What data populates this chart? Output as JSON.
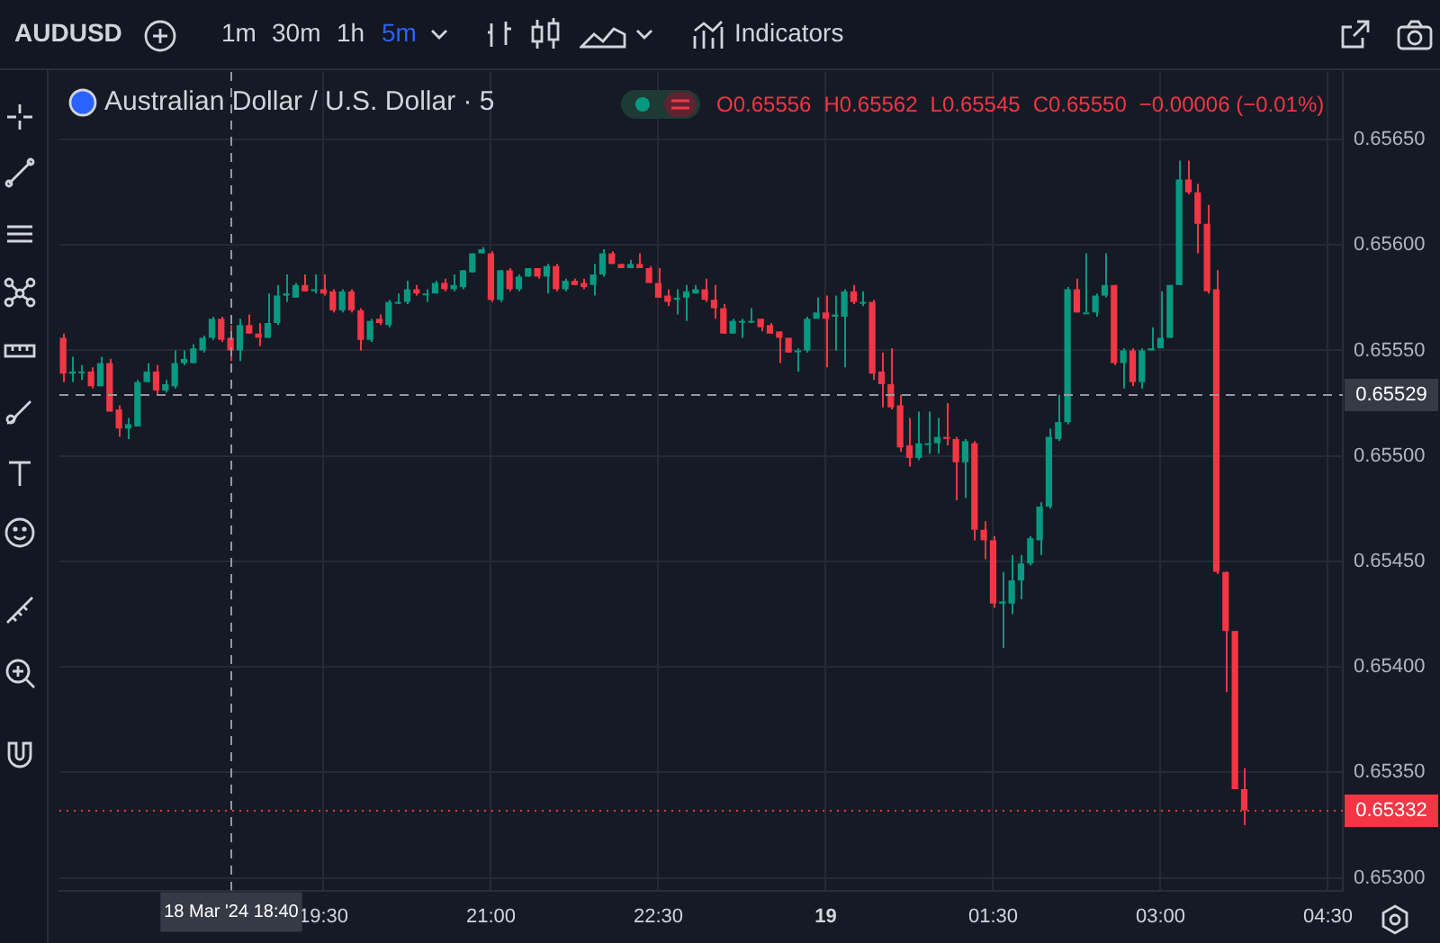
{
  "chart_data": {
    "type": "candlestick",
    "title": "Australian Dollar / U.S. Dollar · 5",
    "annotations": [
      "AUDUSD",
      "1m",
      "30m",
      "1h",
      "5m",
      "Indicators",
      "O0.65556",
      "H0.65562",
      "L0.65545",
      "C0.65550",
      "−0.00006 (−0.01%)"
    ],
    "x": [
      "2024-03-18T17:10",
      "2024-03-18T17:15",
      "2024-03-18T17:20",
      "2024-03-18T17:25",
      "2024-03-18T17:30",
      "2024-03-18T17:35",
      "2024-03-18T17:40",
      "2024-03-18T17:45",
      "2024-03-18T17:50",
      "2024-03-18T17:55",
      "2024-03-18T18:00",
      "2024-03-18T18:05",
      "2024-03-18T18:10",
      "2024-03-18T18:15",
      "2024-03-18T18:20",
      "2024-03-18T18:25",
      "2024-03-18T18:30",
      "2024-03-18T18:35",
      "2024-03-18T18:40",
      "2024-03-18T18:45",
      "2024-03-18T18:50",
      "2024-03-18T18:55",
      "2024-03-18T19:00",
      "2024-03-18T19:05",
      "2024-03-18T19:10",
      "2024-03-18T19:15",
      "2024-03-18T19:20",
      "2024-03-18T19:25",
      "2024-03-18T19:30",
      "2024-03-18T19:35",
      "2024-03-18T19:40",
      "2024-03-18T19:45",
      "2024-03-18T19:50",
      "2024-03-18T19:55",
      "2024-03-18T20:00",
      "2024-03-18T20:05",
      "2024-03-18T20:10",
      "2024-03-18T20:15",
      "2024-03-18T20:20",
      "2024-03-18T20:25",
      "2024-03-18T20:30",
      "2024-03-18T20:35",
      "2024-03-18T20:40",
      "2024-03-18T20:45",
      "2024-03-18T20:50",
      "2024-03-18T20:55",
      "2024-03-18T21:00",
      "2024-03-18T21:05",
      "2024-03-18T21:10",
      "2024-03-18T21:15",
      "2024-03-18T21:20",
      "2024-03-18T21:25",
      "2024-03-18T21:30",
      "2024-03-18T21:35",
      "2024-03-18T21:40",
      "2024-03-18T21:45",
      "2024-03-18T21:50",
      "2024-03-18T21:55",
      "2024-03-18T22:00",
      "2024-03-18T22:05",
      "2024-03-18T22:10",
      "2024-03-18T22:15",
      "2024-03-18T22:20",
      "2024-03-18T22:25",
      "2024-03-18T22:30",
      "2024-03-18T22:35",
      "2024-03-18T22:40",
      "2024-03-18T22:45",
      "2024-03-18T22:50",
      "2024-03-18T22:55",
      "2024-03-18T23:00",
      "2024-03-18T23:05",
      "2024-03-18T23:10",
      "2024-03-18T23:15",
      "2024-03-18T23:20",
      "2024-03-18T23:25",
      "2024-03-18T23:30",
      "2024-03-18T23:35",
      "2024-03-18T23:40",
      "2024-03-18T23:45",
      "2024-03-18T23:50",
      "2024-03-18T23:55",
      "2024-03-19T00:00",
      "2024-03-19T00:05",
      "2024-03-19T00:10",
      "2024-03-19T00:15",
      "2024-03-19T00:20",
      "2024-03-19T00:25",
      "2024-03-19T00:30",
      "2024-03-19T00:35",
      "2024-03-19T00:40",
      "2024-03-19T00:45",
      "2024-03-19T00:50",
      "2024-03-19T00:55",
      "2024-03-19T01:00",
      "2024-03-19T01:05",
      "2024-03-19T01:10",
      "2024-03-19T01:15",
      "2024-03-19T01:20",
      "2024-03-19T01:25",
      "2024-03-19T01:30",
      "2024-03-19T01:35",
      "2024-03-19T01:40",
      "2024-03-19T01:45",
      "2024-03-19T01:50",
      "2024-03-19T01:55",
      "2024-03-19T02:00",
      "2024-03-19T02:05",
      "2024-03-19T02:10",
      "2024-03-19T02:15",
      "2024-03-19T02:20",
      "2024-03-19T02:25",
      "2024-03-19T02:30",
      "2024-03-19T02:35",
      "2024-03-19T02:40",
      "2024-03-19T02:45",
      "2024-03-19T02:50",
      "2024-03-19T02:55",
      "2024-03-19T03:00",
      "2024-03-19T03:05",
      "2024-03-19T03:10",
      "2024-03-19T03:15",
      "2024-03-19T03:20",
      "2024-03-19T03:25",
      "2024-03-19T03:30",
      "2024-03-19T03:35",
      "2024-03-19T03:40",
      "2024-03-19T03:45"
    ],
    "ohlc": [
      [
        0.65556,
        0.65558,
        0.65535,
        0.65539
      ],
      [
        0.65539,
        0.65547,
        0.65535,
        0.6554
      ],
      [
        0.6554,
        0.65543,
        0.65536,
        0.6554
      ],
      [
        0.6554,
        0.65542,
        0.65532,
        0.65533
      ],
      [
        0.65533,
        0.65547,
        0.65533,
        0.65544
      ],
      [
        0.65544,
        0.65546,
        0.65521,
        0.65521
      ],
      [
        0.65522,
        0.65524,
        0.65509,
        0.65513
      ],
      [
        0.65513,
        0.65518,
        0.65508,
        0.65515
      ],
      [
        0.65514,
        0.65536,
        0.65514,
        0.65535
      ],
      [
        0.65535,
        0.65544,
        0.65535,
        0.6554
      ],
      [
        0.6554,
        0.65543,
        0.65529,
        0.65531
      ],
      [
        0.65531,
        0.65536,
        0.6553,
        0.65534
      ],
      [
        0.65533,
        0.6555,
        0.65532,
        0.65544
      ],
      [
        0.65544,
        0.6555,
        0.65543,
        0.65546
      ],
      [
        0.65544,
        0.65553,
        0.65544,
        0.65551
      ],
      [
        0.6555,
        0.65557,
        0.65549,
        0.65556
      ],
      [
        0.65556,
        0.65566,
        0.65555,
        0.65565
      ],
      [
        0.65565,
        0.65566,
        0.65554,
        0.65555
      ],
      [
        0.65556,
        0.65562,
        0.65545,
        0.6555
      ],
      [
        0.6555,
        0.65565,
        0.65545,
        0.65562
      ],
      [
        0.65562,
        0.65567,
        0.65558,
        0.65558
      ],
      [
        0.65558,
        0.65563,
        0.65552,
        0.65556
      ],
      [
        0.65556,
        0.65577,
        0.65556,
        0.65563
      ],
      [
        0.65563,
        0.65581,
        0.65562,
        0.65576
      ],
      [
        0.65576,
        0.65586,
        0.65573,
        0.65577
      ],
      [
        0.65575,
        0.65582,
        0.65575,
        0.65581
      ],
      [
        0.65581,
        0.65586,
        0.65578,
        0.65578
      ],
      [
        0.65579,
        0.65586,
        0.65577,
        0.65579
      ],
      [
        0.65579,
        0.65586,
        0.65576,
        0.65577
      ],
      [
        0.65578,
        0.65579,
        0.65568,
        0.65569
      ],
      [
        0.65569,
        0.65579,
        0.65568,
        0.65578
      ],
      [
        0.65578,
        0.65579,
        0.65568,
        0.65569
      ],
      [
        0.65569,
        0.6557,
        0.6555,
        0.65555
      ],
      [
        0.65555,
        0.65565,
        0.65554,
        0.65564
      ],
      [
        0.65565,
        0.65567,
        0.65562,
        0.65563
      ],
      [
        0.65562,
        0.65574,
        0.65561,
        0.65573
      ],
      [
        0.65573,
        0.65577,
        0.65572,
        0.65573
      ],
      [
        0.65573,
        0.65583,
        0.65572,
        0.65579
      ],
      [
        0.65579,
        0.65581,
        0.65576,
        0.65577
      ],
      [
        0.65577,
        0.65579,
        0.65573,
        0.65577
      ],
      [
        0.65577,
        0.65583,
        0.65577,
        0.65582
      ],
      [
        0.65582,
        0.65584,
        0.65578,
        0.65579
      ],
      [
        0.65579,
        0.65586,
        0.65578,
        0.65581
      ],
      [
        0.6558,
        0.65588,
        0.65579,
        0.65588
      ],
      [
        0.65587,
        0.65596,
        0.65587,
        0.65596
      ],
      [
        0.65596,
        0.65599,
        0.65596,
        0.65598
      ],
      [
        0.65596,
        0.65597,
        0.65573,
        0.65574
      ],
      [
        0.65574,
        0.65588,
        0.65573,
        0.65588
      ],
      [
        0.65588,
        0.65589,
        0.65578,
        0.65579
      ],
      [
        0.65579,
        0.65586,
        0.65578,
        0.65585
      ],
      [
        0.65585,
        0.65589,
        0.65585,
        0.65589
      ],
      [
        0.65589,
        0.65589,
        0.65584,
        0.65585
      ],
      [
        0.65585,
        0.65591,
        0.65577,
        0.6559
      ],
      [
        0.6559,
        0.65591,
        0.65578,
        0.65579
      ],
      [
        0.65579,
        0.65584,
        0.65578,
        0.65583
      ],
      [
        0.65583,
        0.65584,
        0.65581,
        0.65581
      ],
      [
        0.65582,
        0.65584,
        0.65579,
        0.6558
      ],
      [
        0.65581,
        0.65591,
        0.65576,
        0.65586
      ],
      [
        0.65586,
        0.65598,
        0.65585,
        0.65596
      ],
      [
        0.65596,
        0.65597,
        0.65591,
        0.65591
      ],
      [
        0.65591,
        0.65591,
        0.65589,
        0.65589
      ],
      [
        0.65589,
        0.65593,
        0.65589,
        0.65591
      ],
      [
        0.65591,
        0.65596,
        0.65589,
        0.65589
      ],
      [
        0.65589,
        0.6559,
        0.65582,
        0.65582
      ],
      [
        0.65582,
        0.65589,
        0.65575,
        0.65575
      ],
      [
        0.65576,
        0.65579,
        0.65571,
        0.65573
      ],
      [
        0.65574,
        0.65579,
        0.65567,
        0.65575
      ],
      [
        0.65575,
        0.65581,
        0.65564,
        0.65578
      ],
      [
        0.65577,
        0.65581,
        0.65577,
        0.65579
      ],
      [
        0.65579,
        0.65584,
        0.65573,
        0.65574
      ],
      [
        0.65574,
        0.65581,
        0.65565,
        0.6557
      ],
      [
        0.6557,
        0.65572,
        0.65558,
        0.65558
      ],
      [
        0.65558,
        0.65565,
        0.65558,
        0.65564
      ],
      [
        0.65564,
        0.65565,
        0.65556,
        0.65564
      ],
      [
        0.65564,
        0.6557,
        0.65563,
        0.65564
      ],
      [
        0.65565,
        0.65565,
        0.65559,
        0.65561
      ],
      [
        0.65562,
        0.65563,
        0.65558,
        0.65558
      ],
      [
        0.65559,
        0.65559,
        0.65544,
        0.65556
      ],
      [
        0.65556,
        0.65556,
        0.65549,
        0.65549
      ],
      [
        0.6555,
        0.65551,
        0.6554,
        0.6555
      ],
      [
        0.6555,
        0.65566,
        0.65549,
        0.65565
      ],
      [
        0.65565,
        0.65575,
        0.65565,
        0.65568
      ],
      [
        0.65568,
        0.65576,
        0.65542,
        0.65565
      ],
      [
        0.65566,
        0.65576,
        0.6555,
        0.65567
      ],
      [
        0.65566,
        0.65579,
        0.65542,
        0.65578
      ],
      [
        0.65578,
        0.65581,
        0.65572,
        0.65573
      ],
      [
        0.65573,
        0.65578,
        0.65571,
        0.65573
      ],
      [
        0.65573,
        0.65574,
        0.65536,
        0.65539
      ],
      [
        0.6554,
        0.65549,
        0.65523,
        0.65534
      ],
      [
        0.65534,
        0.65551,
        0.65522,
        0.65523
      ],
      [
        0.65524,
        0.65529,
        0.65502,
        0.65504
      ],
      [
        0.65505,
        0.65518,
        0.65495,
        0.65499
      ],
      [
        0.65499,
        0.65521,
        0.65498,
        0.65506
      ],
      [
        0.65506,
        0.65521,
        0.65501,
        0.65506
      ],
      [
        0.65506,
        0.65518,
        0.65501,
        0.65509
      ],
      [
        0.65509,
        0.65525,
        0.65505,
        0.65508
      ],
      [
        0.65508,
        0.65509,
        0.65479,
        0.65497
      ],
      [
        0.65497,
        0.65508,
        0.6548,
        0.65507
      ],
      [
        0.65506,
        0.65507,
        0.6546,
        0.65465
      ],
      [
        0.65465,
        0.65469,
        0.65451,
        0.6546
      ],
      [
        0.6546,
        0.65462,
        0.65428,
        0.6543
      ],
      [
        0.6543,
        0.65445,
        0.65409,
        0.65431
      ],
      [
        0.6543,
        0.65453,
        0.65425,
        0.65441
      ],
      [
        0.65441,
        0.65453,
        0.65432,
        0.65449
      ],
      [
        0.65449,
        0.65462,
        0.65448,
        0.65461
      ],
      [
        0.6546,
        0.65478,
        0.65453,
        0.65476
      ],
      [
        0.65476,
        0.65513,
        0.65475,
        0.65509
      ],
      [
        0.65508,
        0.65529,
        0.65507,
        0.65516
      ],
      [
        0.65516,
        0.6558,
        0.65515,
        0.65579
      ],
      [
        0.65579,
        0.65584,
        0.65568,
        0.65568
      ],
      [
        0.65568,
        0.65596,
        0.65568,
        0.65568
      ],
      [
        0.65568,
        0.65577,
        0.65566,
        0.65576
      ],
      [
        0.65576,
        0.65596,
        0.65575,
        0.65581
      ],
      [
        0.65581,
        0.65581,
        0.65543,
        0.65544
      ],
      [
        0.65544,
        0.65551,
        0.65532,
        0.6555
      ],
      [
        0.6555,
        0.65551,
        0.65533,
        0.65535
      ],
      [
        0.65535,
        0.65551,
        0.65532,
        0.6555
      ],
      [
        0.6555,
        0.65561,
        0.6555,
        0.65551
      ],
      [
        0.65551,
        0.65578,
        0.65551,
        0.65556
      ],
      [
        0.65556,
        0.65581,
        0.65556,
        0.65581
      ],
      [
        0.65581,
        0.6564,
        0.65581,
        0.65631
      ],
      [
        0.65631,
        0.6564,
        0.65624,
        0.65625
      ],
      [
        0.65625,
        0.65629,
        0.65596,
        0.6561
      ],
      [
        0.6561,
        0.65619,
        0.65577,
        0.65578
      ],
      [
        0.65579,
        0.65588,
        0.65444,
        0.65445
      ],
      [
        0.65445,
        0.65445,
        0.65388,
        0.65417
      ],
      [
        0.65417,
        0.65417,
        0.65342,
        0.65342
      ],
      [
        0.65342,
        0.65352,
        0.65325,
        0.65332
      ]
    ],
    "xlim": [
      "2024-03-18T17:08",
      "2024-03-19T04:38"
    ],
    "ylim": [
      0.65294,
      0.65682
    ],
    "xticks": [
      {
        "value": "2024-03-18T19:30",
        "label": "19:30"
      },
      {
        "value": "2024-03-18T21:00",
        "label": "21:00"
      },
      {
        "value": "2024-03-18T22:30",
        "label": "22:30"
      },
      {
        "value": "2024-03-19T00:00",
        "label": "19"
      },
      {
        "value": "2024-03-19T01:30",
        "label": "01:30"
      },
      {
        "value": "2024-03-19T03:00",
        "label": "03:00"
      },
      {
        "value": "2024-03-19T04:30",
        "label": "04:30"
      }
    ],
    "yticks": [
      {
        "value": 0.653,
        "label": "0.65300"
      },
      {
        "value": 0.6535,
        "label": "0.65350"
      },
      {
        "value": 0.654,
        "label": "0.65400"
      },
      {
        "value": 0.6545,
        "label": "0.65450"
      },
      {
        "value": 0.655,
        "label": "0.65500"
      },
      {
        "value": 0.6555,
        "label": "0.65550"
      },
      {
        "value": 0.656,
        "label": "0.65600"
      },
      {
        "value": 0.6565,
        "label": "0.65650"
      }
    ],
    "grid": true,
    "ref_lines": [
      {
        "axis": "x",
        "value": "2024-03-18T18:40",
        "label": "18 Mar '24 18:40",
        "line_style": "dashed"
      },
      {
        "axis": "y",
        "value": 0.65529,
        "label": "0.65529",
        "line_style": "dashed"
      },
      {
        "axis": "y",
        "value": 0.65332,
        "label": "0.65332",
        "color": "#f23645",
        "line_style": "dotted"
      }
    ]
  }
}
